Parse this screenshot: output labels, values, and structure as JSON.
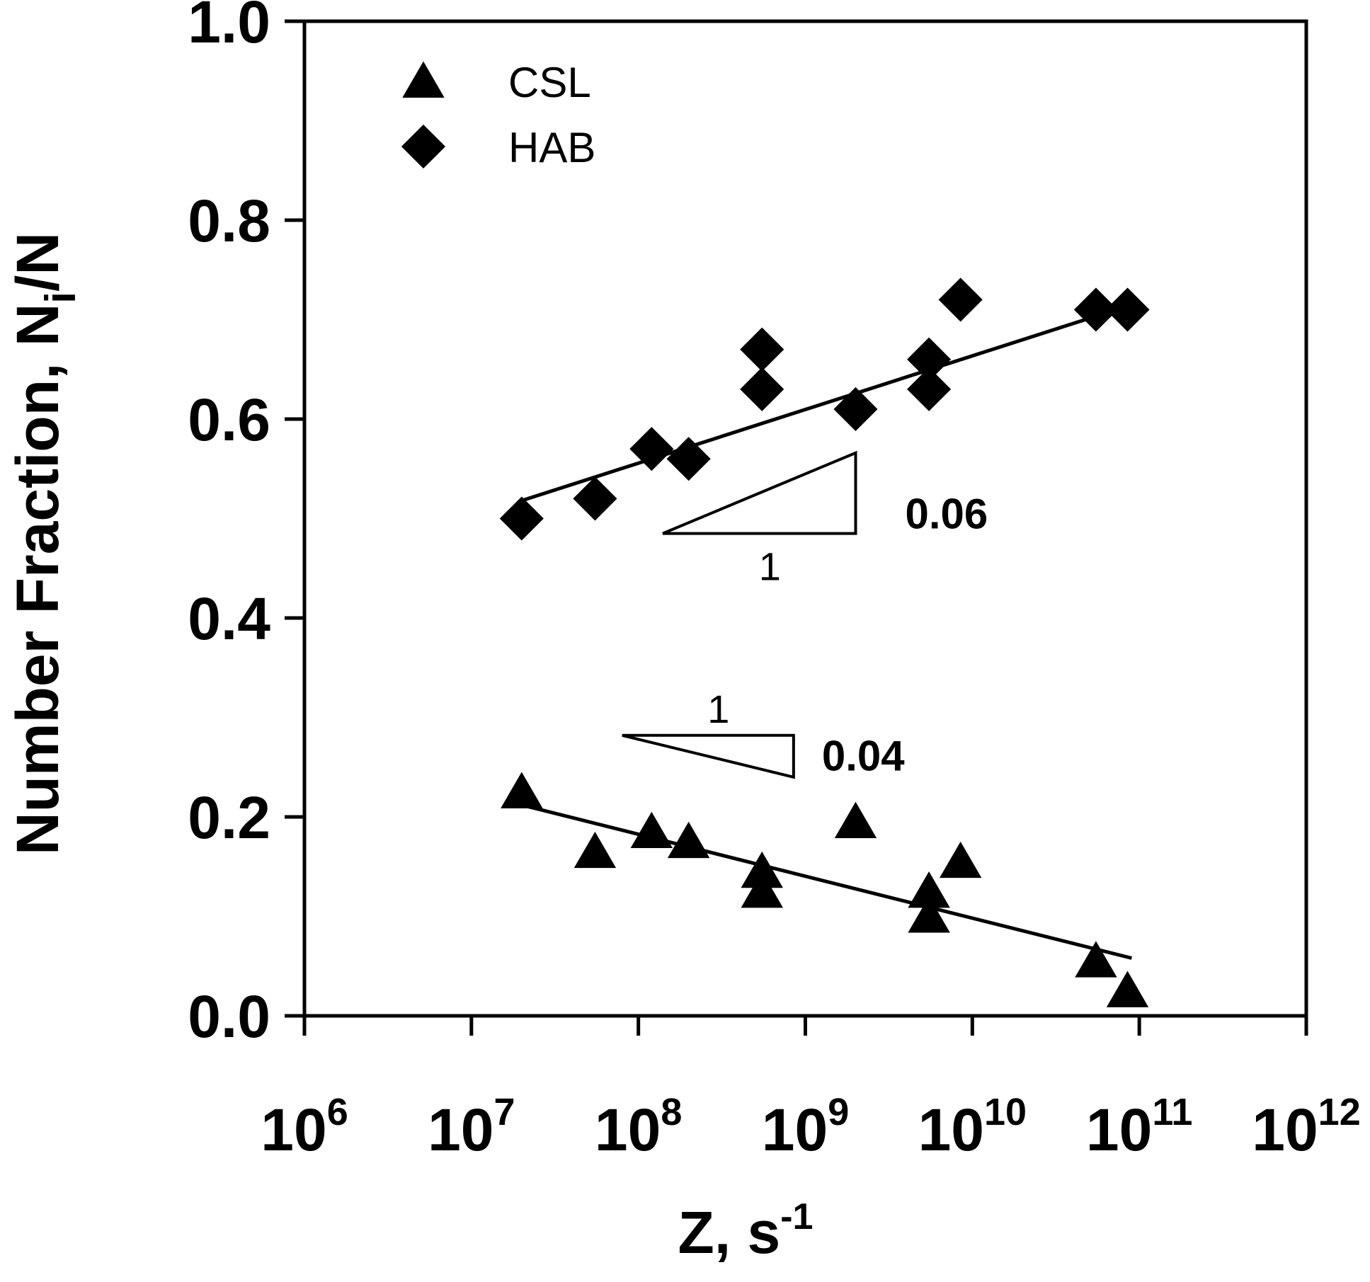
{
  "chart_data": {
    "type": "scatter",
    "title": "",
    "xlabel": "Z, s",
    "xlabel_superscript": "-1",
    "ylabel": "Number Fraction, N",
    "ylabel_subscript": "i",
    "ylabel_suffix": "/N",
    "x_scale": "log",
    "xlim": [
      1000000,
      1000000000000
    ],
    "ylim": [
      0.0,
      1.0
    ],
    "grid": false,
    "legend_position": "top-left",
    "x_ticks": [
      {
        "value": 1000000,
        "base": "10",
        "exp": "6"
      },
      {
        "value": 10000000,
        "base": "10",
        "exp": "7"
      },
      {
        "value": 100000000,
        "base": "10",
        "exp": "8"
      },
      {
        "value": 1000000000,
        "base": "10",
        "exp": "9"
      },
      {
        "value": 10000000000,
        "base": "10",
        "exp": "10"
      },
      {
        "value": 100000000000,
        "base": "10",
        "exp": "11"
      },
      {
        "value": 1000000000000,
        "base": "10",
        "exp": "12"
      }
    ],
    "y_ticks": [
      {
        "value": 0.0,
        "label": "0.0"
      },
      {
        "value": 0.2,
        "label": "0.2"
      },
      {
        "value": 0.4,
        "label": "0.4"
      },
      {
        "value": 0.6,
        "label": "0.6"
      },
      {
        "value": 0.8,
        "label": "0.8"
      },
      {
        "value": 1.0,
        "label": "1.0"
      }
    ],
    "series": [
      {
        "name": "CSL",
        "marker": "triangle",
        "color": "#000000",
        "points": [
          {
            "x": 20000000,
            "y": 0.225
          },
          {
            "x": 55000000,
            "y": 0.165
          },
          {
            "x": 120000000,
            "y": 0.185
          },
          {
            "x": 200000000,
            "y": 0.175
          },
          {
            "x": 550000000,
            "y": 0.145
          },
          {
            "x": 550000000,
            "y": 0.125
          },
          {
            "x": 2000000000,
            "y": 0.195
          },
          {
            "x": 5500000000,
            "y": 0.125
          },
          {
            "x": 5500000000,
            "y": 0.1
          },
          {
            "x": 8500000000,
            "y": 0.155
          },
          {
            "x": 55000000000,
            "y": 0.055
          },
          {
            "x": 85000000000,
            "y": 0.025
          }
        ],
        "fit": {
          "x": [
            20000000,
            90000000000
          ],
          "y": [
            0.212,
            0.058
          ]
        }
      },
      {
        "name": "HAB",
        "marker": "diamond",
        "color": "#000000",
        "points": [
          {
            "x": 20000000,
            "y": 0.5
          },
          {
            "x": 55000000,
            "y": 0.52
          },
          {
            "x": 120000000,
            "y": 0.57
          },
          {
            "x": 200000000,
            "y": 0.56
          },
          {
            "x": 550000000,
            "y": 0.67
          },
          {
            "x": 550000000,
            "y": 0.63
          },
          {
            "x": 2000000000,
            "y": 0.61
          },
          {
            "x": 5500000000,
            "y": 0.66
          },
          {
            "x": 5500000000,
            "y": 0.63
          },
          {
            "x": 8500000000,
            "y": 0.72
          },
          {
            "x": 55000000000,
            "y": 0.71
          },
          {
            "x": 85000000000,
            "y": 0.71
          }
        ],
        "fit": {
          "x": [
            20000000,
            90000000000
          ],
          "y": [
            0.518,
            0.715
          ]
        }
      }
    ],
    "annotations": [
      {
        "name": "hab-slope",
        "label": "0.06",
        "run_label": "1",
        "triangle": {
          "x0": 140000000,
          "x1": 2000000000,
          "y_base": 0.485,
          "y_top": 0.566
        }
      },
      {
        "name": "csl-slope",
        "label": "0.04",
        "run_label": "1",
        "triangle": {
          "x0": 80000000,
          "x1": 850000000,
          "y_base": 0.282,
          "y_bottom": 0.24
        }
      }
    ]
  }
}
